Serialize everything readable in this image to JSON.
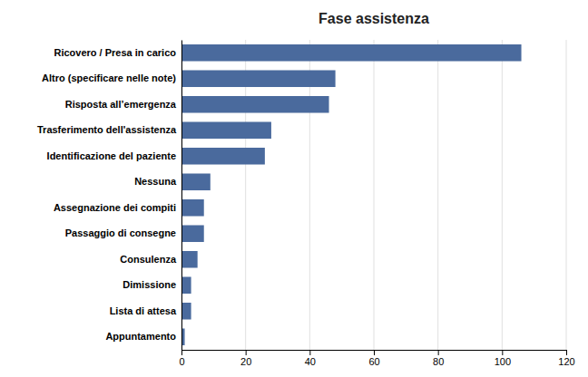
{
  "chart_data": {
    "type": "bar",
    "orientation": "horizontal",
    "title": "Fase assistenza",
    "categories": [
      "Appuntamento",
      "Lista di attesa",
      "Dimissione",
      "Consulenza",
      "Passaggio di consegne",
      "Assegnazione dei compiti",
      "Nessuna",
      "Identificazione del paziente",
      "Trasferimento dell'assistenza",
      "Risposta all’emergenza",
      "Altro (specificare nelle note)",
      "Ricovero / Presa in carico"
    ],
    "values": [
      1,
      3,
      3,
      5,
      7,
      7,
      9,
      26,
      28,
      46,
      48,
      106
    ],
    "color": "#4a6a9d",
    "xlim": [
      0,
      120
    ],
    "xticks": [
      0,
      20,
      40,
      60,
      80,
      100,
      120
    ],
    "grid": true
  }
}
